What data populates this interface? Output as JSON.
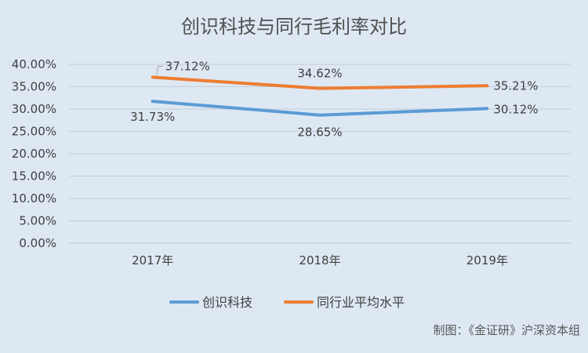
{
  "chart_data": {
    "type": "line",
    "title": "创识科技与同行毛利率对比",
    "categories": [
      "2017年",
      "2018年",
      "2019年"
    ],
    "ylim": [
      0,
      40
    ],
    "y_ticks": [
      "0.00%",
      "5.00%",
      "10.00%",
      "15.00%",
      "20.00%",
      "25.00%",
      "30.00%",
      "35.00%",
      "40.00%"
    ],
    "grid": true,
    "legend_position": "bottom",
    "series": [
      {
        "name": "创识科技",
        "color": "#5b9bd5",
        "values": [
          31.73,
          28.65,
          30.12
        ],
        "labels": [
          "31.73%",
          "28.65%",
          "30.12%"
        ]
      },
      {
        "name": "同行业平均水平",
        "color": "#ed7d31",
        "values": [
          37.12,
          34.62,
          35.21
        ],
        "labels": [
          "37.12%",
          "34.62%",
          "35.21%"
        ]
      }
    ]
  },
  "credit": "制图：《金证研》沪深资本组"
}
